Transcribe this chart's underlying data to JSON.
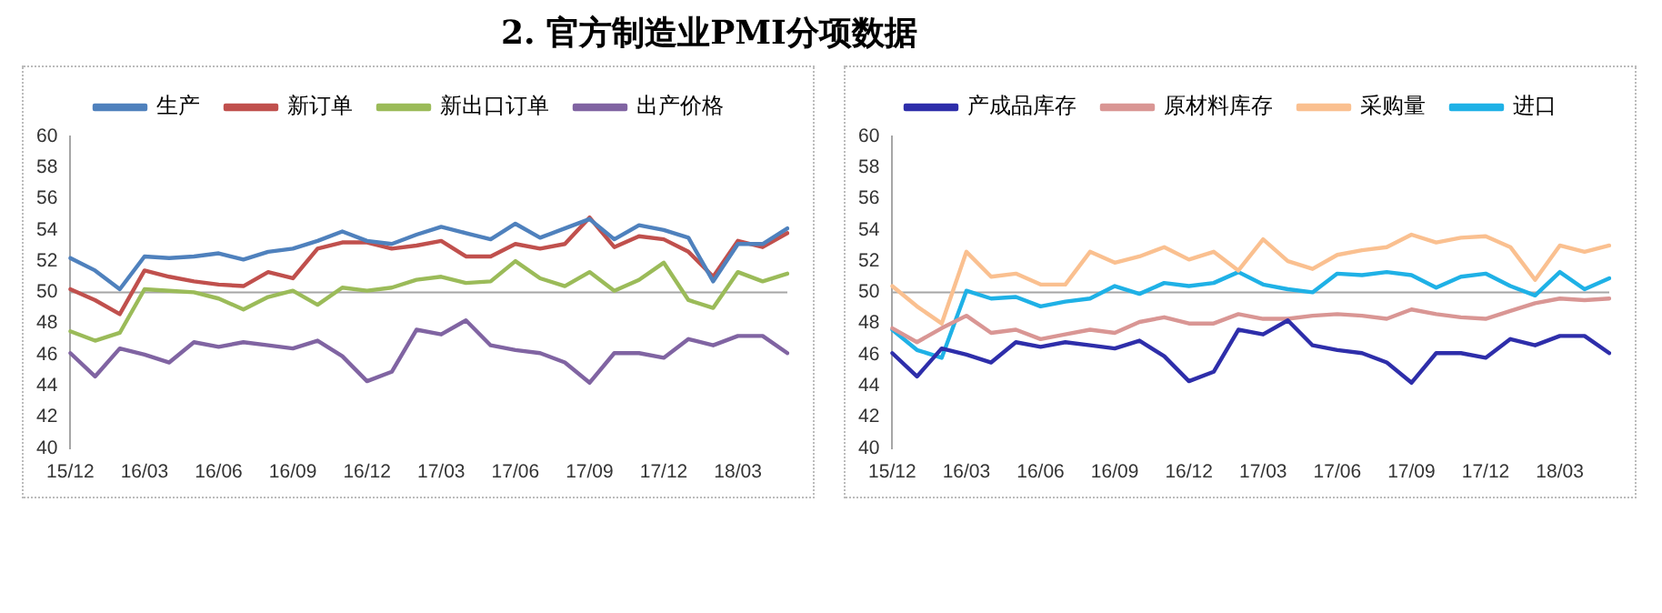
{
  "chart_data": [
    {
      "type": "line",
      "title": "2.  官方制造业PMI分项数据",
      "categories": [
        "15/12",
        null,
        null,
        "16/03",
        null,
        null,
        "16/06",
        null,
        null,
        "16/09",
        null,
        null,
        "16/12",
        null,
        null,
        "17/03",
        null,
        null,
        "17/06",
        null,
        null,
        "17/09",
        null,
        null,
        "17/12",
        null,
        null,
        "18/03",
        null,
        null
      ],
      "series": [
        {
          "name": "生产",
          "color": "#4f81bd",
          "values": [
            52.2,
            51.4,
            50.2,
            52.3,
            52.2,
            52.3,
            52.5,
            52.1,
            52.6,
            52.8,
            53.3,
            53.9,
            53.3,
            53.1,
            53.7,
            54.2,
            53.8,
            53.4,
            54.4,
            53.5,
            54.1,
            54.7,
            53.4,
            54.3,
            54.0,
            53.5,
            50.7,
            53.1,
            53.1,
            54.1
          ]
        },
        {
          "name": "新订单",
          "color": "#c0504d",
          "values": [
            50.2,
            49.5,
            48.6,
            51.4,
            51.0,
            50.7,
            50.5,
            50.4,
            51.3,
            50.9,
            52.8,
            53.2,
            53.2,
            52.8,
            53.0,
            53.3,
            52.3,
            52.3,
            53.1,
            52.8,
            53.1,
            54.8,
            52.9,
            53.6,
            53.4,
            52.6,
            51.0,
            53.3,
            52.9,
            53.8
          ]
        },
        {
          "name": "新出口订单",
          "color": "#9bbb59",
          "values": [
            47.5,
            46.9,
            47.4,
            50.2,
            50.1,
            50.0,
            49.6,
            48.9,
            49.7,
            50.1,
            49.2,
            50.3,
            50.1,
            50.3,
            50.8,
            51.0,
            50.6,
            50.7,
            52.0,
            50.9,
            50.4,
            51.3,
            50.1,
            50.8,
            51.9,
            49.5,
            49.0,
            51.3,
            50.7,
            51.2
          ]
        },
        {
          "name": "出产价格",
          "color": "#8064a2",
          "values": [
            46.1,
            44.6,
            46.4,
            46.0,
            45.5,
            46.8,
            46.5,
            46.8,
            46.6,
            46.4,
            46.9,
            45.9,
            44.3,
            44.9,
            47.6,
            47.3,
            48.2,
            46.6,
            46.3,
            46.1,
            45.5,
            44.2,
            46.1,
            46.1,
            45.8,
            47.0,
            46.6,
            47.2,
            47.2,
            46.1
          ]
        }
      ],
      "ylim": [
        40,
        60
      ],
      "yticks": [
        40,
        42,
        44,
        46,
        48,
        50,
        52,
        54,
        56,
        58,
        60
      ],
      "grid": false,
      "legend": "top",
      "marker": "none",
      "line_style": "solid",
      "ref_lines": [
        {
          "axis": "y",
          "value": 50,
          "color": "#a6a6a6"
        }
      ]
    },
    {
      "type": "line",
      "categories": [
        "15/12",
        null,
        null,
        "16/03",
        null,
        null,
        "16/06",
        null,
        null,
        "16/09",
        null,
        null,
        "16/12",
        null,
        null,
        "17/03",
        null,
        null,
        "17/06",
        null,
        null,
        "17/09",
        null,
        null,
        "17/12",
        null,
        null,
        "18/03",
        null,
        null
      ],
      "series": [
        {
          "name": "产成品库存",
          "color": "#2e2eaa",
          "values": [
            46.1,
            44.6,
            46.4,
            46.0,
            45.5,
            46.8,
            46.5,
            46.8,
            46.6,
            46.4,
            46.9,
            45.9,
            44.3,
            44.9,
            47.6,
            47.3,
            48.2,
            46.6,
            46.3,
            46.1,
            45.5,
            44.2,
            46.1,
            46.1,
            45.8,
            47.0,
            46.6,
            47.2,
            47.2,
            46.1
          ]
        },
        {
          "name": "原材料库存",
          "color": "#d99694",
          "values": [
            47.7,
            46.8,
            47.7,
            48.5,
            47.4,
            47.6,
            47.0,
            47.3,
            47.6,
            47.4,
            48.1,
            48.4,
            48.0,
            48.0,
            48.6,
            48.3,
            48.3,
            48.5,
            48.6,
            48.5,
            48.3,
            48.9,
            48.6,
            48.4,
            48.3,
            48.8,
            49.3,
            49.6,
            49.5,
            49.6
          ]
        },
        {
          "name": "采购量",
          "color": "#fac090",
          "values": [
            50.4,
            49.1,
            48.0,
            52.6,
            51.0,
            51.2,
            50.5,
            50.5,
            52.6,
            51.9,
            52.3,
            52.9,
            52.1,
            52.6,
            51.4,
            53.4,
            52.0,
            51.5,
            52.4,
            52.7,
            52.9,
            53.7,
            53.2,
            53.5,
            53.6,
            52.9,
            50.8,
            53.0,
            52.6,
            53.0
          ]
        },
        {
          "name": "进口",
          "color": "#1fb1e6",
          "values": [
            47.6,
            46.3,
            45.8,
            50.1,
            49.6,
            49.7,
            49.1,
            49.4,
            49.6,
            50.4,
            49.9,
            50.6,
            50.4,
            50.6,
            51.3,
            50.5,
            50.2,
            50.0,
            51.2,
            51.1,
            51.3,
            51.1,
            50.3,
            51.0,
            51.2,
            50.4,
            49.8,
            51.3,
            50.2,
            50.9
          ]
        }
      ],
      "ylim": [
        40,
        60
      ],
      "yticks": [
        40,
        42,
        44,
        46,
        48,
        50,
        52,
        54,
        56,
        58,
        60
      ],
      "grid": false,
      "legend": "top",
      "marker": "none",
      "line_style": "solid",
      "ref_lines": [
        {
          "axis": "y",
          "value": 50,
          "color": "#a6a6a6"
        }
      ]
    }
  ]
}
